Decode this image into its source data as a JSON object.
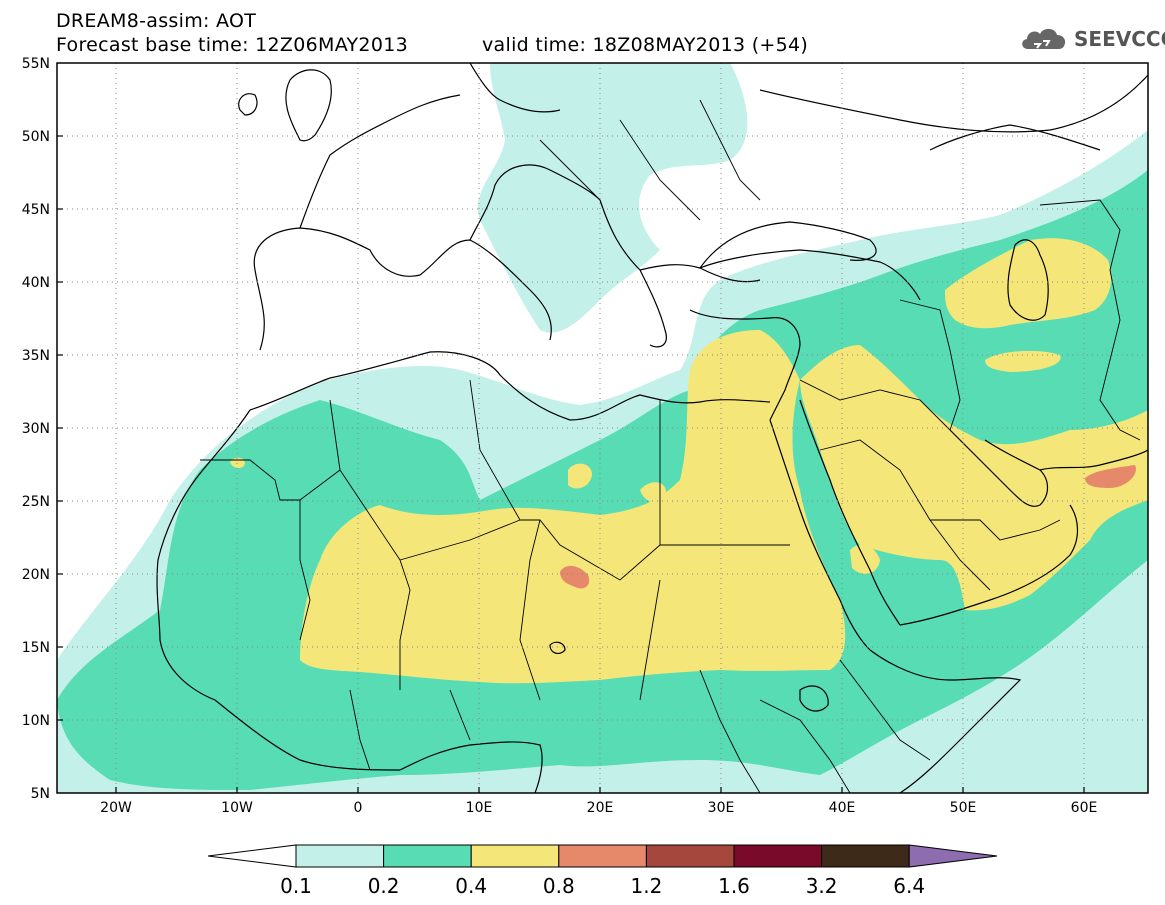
{
  "header": {
    "title": "DREAM8-assim: AOT",
    "base_time": "Forecast base time: 12Z06MAY2013",
    "valid_time": "valid time: 18Z08MAY2013 (+54)",
    "logo_text": "SEEVCCC"
  },
  "map": {
    "lat_labels": [
      "55N",
      "50N",
      "45N",
      "40N",
      "35N",
      "30N",
      "25N",
      "20N",
      "15N",
      "10N",
      "5N"
    ],
    "lon_labels": [
      "20W",
      "10W",
      "0",
      "10E",
      "20E",
      "30E",
      "40E",
      "50E",
      "60E"
    ],
    "extent": {
      "lon": [
        -25,
        65
      ],
      "lat": [
        5,
        55
      ]
    }
  },
  "colorbar": {
    "labels": [
      "0.1",
      "0.2",
      "0.4",
      "0.8",
      "1.2",
      "1.6",
      "3.2",
      "6.4"
    ],
    "colors": [
      "#ffffff",
      "#c4f0ea",
      "#57dcb4",
      "#f5e67a",
      "#e6896a",
      "#a5473d",
      "#7a0a2a",
      "#3e2a18",
      "#8e6cb0"
    ]
  }
}
